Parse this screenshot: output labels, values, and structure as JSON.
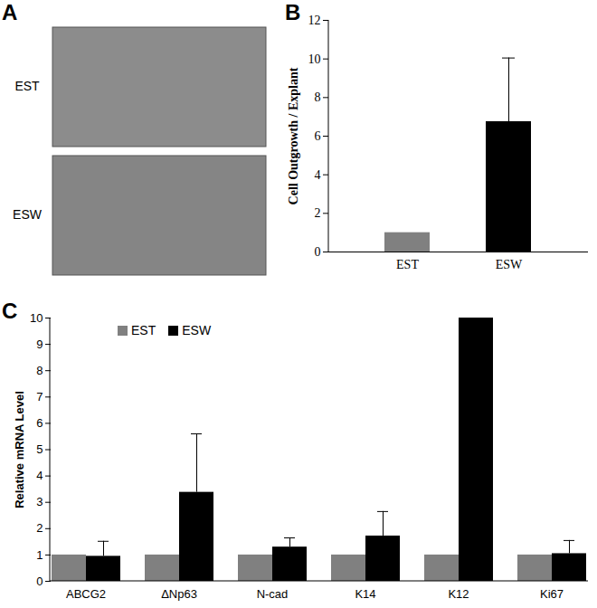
{
  "chart_data": [
    {
      "type": "image",
      "title": "A",
      "categories": [
        "EST",
        "ESW"
      ]
    },
    {
      "type": "bar",
      "title": "B",
      "categories": [
        "EST",
        "ESW"
      ],
      "values": [
        1,
        6.75
      ],
      "errors": [
        null,
        3.3
      ],
      "colors": [
        "#808080",
        "#000000"
      ],
      "ylabel": "Cell Outgrowth / Explant",
      "ylim": [
        0,
        12
      ],
      "yticks": [
        0,
        2,
        4,
        6,
        8,
        10,
        12
      ],
      "grid": false
    },
    {
      "type": "bar",
      "title": "C",
      "categories": [
        "ABCG2",
        "ΔNp63",
        "N-cad",
        "K14",
        "K12",
        "Ki67"
      ],
      "series": [
        {
          "name": "EST",
          "color": "#808080",
          "values": [
            1,
            1,
            1,
            1,
            1,
            1
          ]
        },
        {
          "name": "ESW",
          "color": "#000000",
          "values": [
            0.95,
            3.38,
            1.3,
            1.72,
            10,
            1.05
          ],
          "errors": [
            0.57,
            2.22,
            0.35,
            0.93,
            null,
            0.5
          ]
        }
      ],
      "ylabel": "Relative mRNA Level",
      "ylim": [
        0,
        10
      ],
      "yticks": [
        0,
        1,
        2,
        3,
        4,
        5,
        6,
        7,
        8,
        9,
        10
      ],
      "legend": "top-left",
      "grid": false
    }
  ]
}
